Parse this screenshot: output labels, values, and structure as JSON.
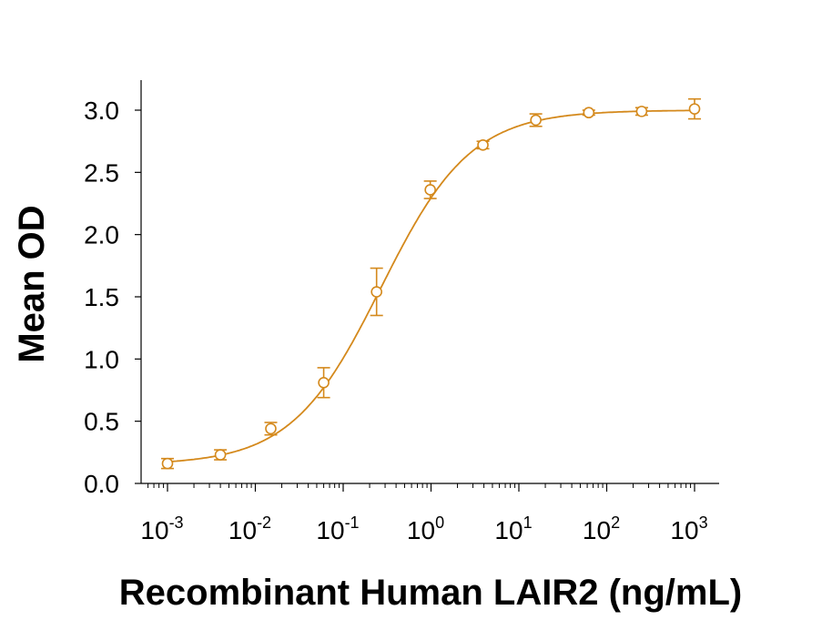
{
  "chart_data": {
    "type": "scatter",
    "title": "",
    "xlabel": "Recombinant Human LAIR2 (ng/mL)",
    "ylabel": "Mean OD",
    "xscale": "log",
    "xlim": [
      0.0005,
      2000
    ],
    "ylim": [
      0.0,
      3.2
    ],
    "x_ticks": [
      {
        "base": "10",
        "exp": "-3",
        "value": 0.001
      },
      {
        "base": "10",
        "exp": "-2",
        "value": 0.01
      },
      {
        "base": "10",
        "exp": "-1",
        "value": 0.1
      },
      {
        "base": "10",
        "exp": "0",
        "value": 1
      },
      {
        "base": "10",
        "exp": "1",
        "value": 10
      },
      {
        "base": "10",
        "exp": "2",
        "value": 100
      },
      {
        "base": "10",
        "exp": "3",
        "value": 1000
      }
    ],
    "y_ticks": [
      "0.0",
      "0.5",
      "1.0",
      "1.5",
      "2.0",
      "2.5",
      "3.0"
    ],
    "y_tick_values": [
      0.0,
      0.5,
      1.0,
      1.5,
      2.0,
      2.5,
      3.0
    ],
    "grid": false,
    "legend": "none",
    "color": "#D4891C",
    "marker": "open-circle",
    "series": [
      {
        "x": [
          0.001,
          0.004,
          0.015,
          0.06,
          0.24,
          0.98,
          3.9,
          15.6,
          62.5,
          250,
          1000
        ],
        "y": [
          0.16,
          0.23,
          0.44,
          0.81,
          1.54,
          2.36,
          2.72,
          2.92,
          2.98,
          2.99,
          3.01
        ],
        "error": [
          0.04,
          0.04,
          0.05,
          0.12,
          0.19,
          0.07,
          0.03,
          0.05,
          0.02,
          0.03,
          0.08
        ]
      }
    ],
    "fit": {
      "model": "4PL",
      "bottom": 0.15,
      "top": 3.0,
      "ec50": 0.27,
      "hill": 0.85
    }
  }
}
